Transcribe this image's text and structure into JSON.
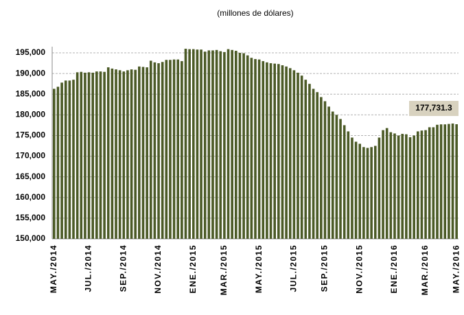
{
  "chart_data": {
    "type": "bar",
    "subtitle": "(millones de dólares)",
    "categories": [
      "MAY./2014",
      null,
      null,
      null,
      null,
      null,
      null,
      null,
      null,
      "JUL./2014",
      null,
      null,
      null,
      null,
      null,
      null,
      null,
      null,
      "SEP./2014",
      null,
      null,
      null,
      null,
      null,
      null,
      null,
      null,
      "NOV./2014",
      null,
      null,
      null,
      null,
      null,
      null,
      null,
      null,
      "ENE./2015",
      null,
      null,
      null,
      null,
      null,
      null,
      null,
      "MAR./2015",
      null,
      null,
      null,
      null,
      null,
      null,
      null,
      null,
      "MAY./2015",
      null,
      null,
      null,
      null,
      null,
      null,
      null,
      null,
      "JUL./2015",
      null,
      null,
      null,
      null,
      null,
      null,
      null,
      "SEP./2015",
      null,
      null,
      null,
      null,
      null,
      null,
      null,
      null,
      "NOV./2015",
      null,
      null,
      null,
      null,
      null,
      null,
      null,
      null,
      "ENE./2016",
      null,
      null,
      null,
      null,
      null,
      null,
      null,
      "MAR./2016",
      null,
      null,
      null,
      null,
      null,
      null,
      null,
      "MAY./2016"
    ],
    "values": [
      186300,
      186800,
      187800,
      188300,
      188300,
      188500,
      190300,
      190400,
      190200,
      190300,
      190200,
      190500,
      190500,
      190400,
      191500,
      191200,
      191000,
      190800,
      190500,
      190800,
      191000,
      190900,
      191700,
      191600,
      191500,
      193100,
      192700,
      192500,
      192800,
      193300,
      193300,
      193400,
      193400,
      193000,
      196000,
      195900,
      195900,
      195800,
      195800,
      195300,
      195600,
      195600,
      195700,
      195400,
      195200,
      195900,
      195700,
      195500,
      195000,
      194900,
      194400,
      193800,
      193500,
      193400,
      193000,
      192700,
      192500,
      192400,
      192300,
      192000,
      191700,
      191300,
      190800,
      190200,
      189500,
      188500,
      187500,
      186300,
      185500,
      184300,
      183300,
      182000,
      180800,
      180000,
      179000,
      177500,
      176000,
      174500,
      173500,
      173000,
      172200,
      172000,
      172200,
      172500,
      174500,
      176300,
      176800,
      175800,
      175500,
      175000,
      175400,
      175300,
      174600,
      175000,
      176000,
      176200,
      176300,
      177000,
      177000,
      177600,
      177700,
      177700,
      177800,
      177900,
      177731.3
    ],
    "value_labels": [
      null,
      null,
      null,
      null,
      null,
      null,
      null,
      null,
      null,
      null,
      null,
      null,
      null,
      null,
      null,
      null,
      null,
      null,
      null,
      null,
      null,
      null,
      null,
      null,
      null,
      null,
      null,
      null,
      null,
      null,
      null,
      null,
      null,
      null,
      null,
      null,
      null,
      null,
      null,
      null,
      null,
      null,
      null,
      null,
      null,
      null,
      null,
      null,
      null,
      null,
      null,
      null,
      null,
      null,
      null,
      null,
      null,
      null,
      null,
      null,
      null,
      null,
      null,
      null,
      null,
      null,
      null,
      null,
      null,
      null,
      null,
      null,
      null,
      null,
      null,
      null,
      null,
      null,
      null,
      null,
      null,
      null,
      null,
      null,
      null,
      null,
      null,
      null,
      null,
      null,
      null,
      null,
      null,
      null,
      null,
      null,
      null,
      null,
      null,
      null,
      null,
      null,
      null,
      null,
      "177,731.3"
    ],
    "color": "#4b5a26",
    "ylim": [
      150000,
      196500
    ],
    "yticks": [
      {
        "value": 150000,
        "label": "150,000"
      },
      {
        "value": 155000,
        "label": "155,000"
      },
      {
        "value": 160000,
        "label": "160,000"
      },
      {
        "value": 165000,
        "label": "165,000"
      },
      {
        "value": 170000,
        "label": "170,000"
      },
      {
        "value": 175000,
        "label": "175,000"
      },
      {
        "value": 180000,
        "label": "180,000"
      },
      {
        "value": 185000,
        "label": "185,000"
      },
      {
        "value": 190000,
        "label": "190,000"
      },
      {
        "value": 195000,
        "label": "195,000"
      }
    ],
    "grid": true
  }
}
